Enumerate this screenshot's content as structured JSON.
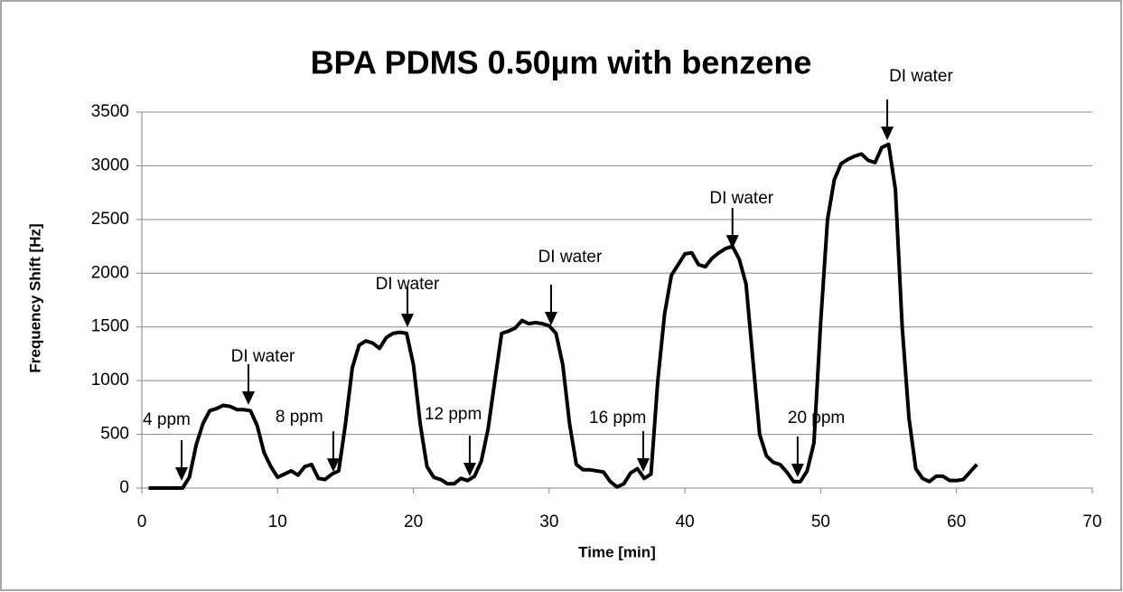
{
  "chart_data": {
    "type": "line",
    "title": "BPA PDMS 0.50µm with benzene",
    "x_label": "Time [min]",
    "y_label": "Frequency Shift [Hz]",
    "xlim": [
      0,
      70
    ],
    "xticks": [
      0,
      10,
      20,
      30,
      40,
      50,
      60,
      70
    ],
    "ylim": [
      0,
      3500
    ],
    "yticks": [
      0,
      500,
      1000,
      1500,
      2000,
      2500,
      3000,
      3500
    ],
    "grid": true,
    "series": [
      {
        "name": "Frequency Shift",
        "color": "#000000",
        "x": [
          0.5,
          3,
          3.5,
          4,
          4.5,
          5,
          5.5,
          6,
          6.5,
          7,
          7.5,
          8,
          8.5,
          9,
          9.5,
          10,
          10.5,
          11,
          11.5,
          12,
          12.5,
          13,
          13.5,
          14,
          14.5,
          15,
          15.5,
          16,
          16.5,
          17,
          17.5,
          18,
          18.5,
          19,
          19.5,
          20,
          20.5,
          21,
          21.5,
          22,
          22.5,
          23,
          23.5,
          24,
          24.5,
          25,
          25.5,
          26,
          26.5,
          27,
          27.5,
          28,
          28.5,
          29,
          29.5,
          30,
          30.5,
          31,
          31.5,
          32,
          32.5,
          33,
          34,
          34.5,
          35,
          35.5,
          36,
          36.5,
          37,
          37.5,
          38,
          38.5,
          39,
          39.5,
          40,
          40.5,
          41,
          41.5,
          42,
          42.5,
          43,
          43.5,
          44,
          44.5,
          45,
          45.5,
          46,
          46.5,
          47,
          47.5,
          48,
          48.5,
          49,
          49.5,
          50,
          50.5,
          51,
          51.5,
          52,
          52.5,
          53,
          53.5,
          54,
          54.5,
          55,
          55.5,
          56,
          56.5,
          57,
          57.5,
          58,
          58.5,
          59,
          59.5,
          60,
          60.5,
          61,
          61.5
        ],
        "values": [
          0,
          0,
          100,
          400,
          600,
          720,
          740,
          770,
          760,
          730,
          730,
          720,
          580,
          330,
          200,
          100,
          130,
          160,
          120,
          200,
          220,
          90,
          80,
          130,
          160,
          600,
          1120,
          1330,
          1370,
          1350,
          1300,
          1400,
          1440,
          1450,
          1440,
          1150,
          600,
          200,
          100,
          80,
          40,
          40,
          90,
          70,
          110,
          250,
          550,
          1000,
          1440,
          1460,
          1490,
          1560,
          1530,
          1540,
          1530,
          1510,
          1440,
          1150,
          600,
          220,
          170,
          170,
          150,
          60,
          10,
          40,
          140,
          180,
          90,
          130,
          1000,
          1620,
          1980,
          2080,
          2180,
          2190,
          2080,
          2060,
          2140,
          2190,
          2230,
          2250,
          2130,
          1900,
          1200,
          500,
          300,
          240,
          220,
          150,
          60,
          60,
          160,
          420,
          1550,
          2500,
          2870,
          3020,
          3060,
          3090,
          3110,
          3050,
          3030,
          3170,
          3200,
          2780,
          1500,
          650,
          180,
          90,
          60,
          110,
          110,
          70,
          70,
          80,
          150,
          220
        ]
      }
    ],
    "annotations": [
      {
        "text": "4 ppm",
        "x": 2.93,
        "y": 67
      },
      {
        "text": "DI water",
        "x": 7.85,
        "y": 774
      },
      {
        "text": "8 ppm",
        "x": 14.1,
        "y": 150
      },
      {
        "text": "DI water",
        "x": 19.56,
        "y": 1497
      },
      {
        "text": "12 ppm",
        "x": 24.15,
        "y": 109
      },
      {
        "text": "DI water",
        "x": 30.14,
        "y": 1514
      },
      {
        "text": "16 ppm",
        "x": 36.93,
        "y": 151
      },
      {
        "text": "DI water",
        "x": 43.5,
        "y": 2229
      },
      {
        "text": "20 ppm",
        "x": 48.3,
        "y": 101
      },
      {
        "text": "DI water",
        "x": 54.9,
        "y": 3238
      }
    ]
  }
}
